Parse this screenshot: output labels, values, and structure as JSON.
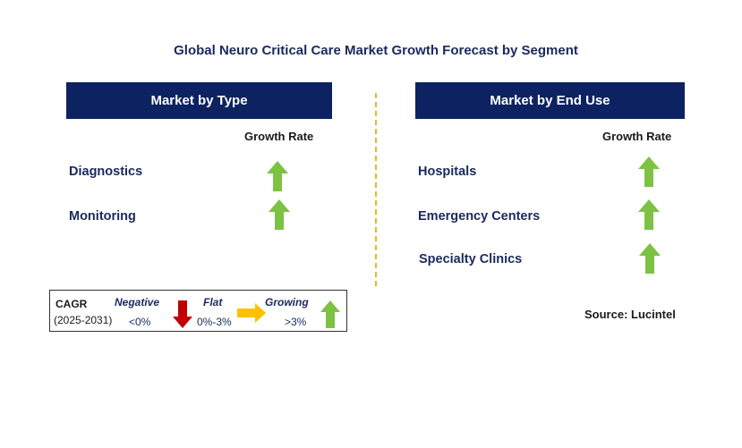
{
  "title": "Global Neuro Critical Care Market Growth Forecast by Segment",
  "left_panel": {
    "header": "Market by Type",
    "growth_label": "Growth Rate",
    "rows": [
      {
        "label": "Diagnostics",
        "trend": "growing"
      },
      {
        "label": "Monitoring",
        "trend": "growing"
      }
    ]
  },
  "right_panel": {
    "header": "Market by End Use",
    "growth_label": "Growth Rate",
    "rows": [
      {
        "label": "Hospitals",
        "trend": "growing"
      },
      {
        "label": "Emergency Centers",
        "trend": "growing"
      },
      {
        "label": "Specialty Clinics",
        "trend": "growing"
      }
    ]
  },
  "legend": {
    "cagr": "CAGR",
    "period": "(2025-2031)",
    "negative_label": "Negative",
    "negative_range": "<0%",
    "flat_label": "Flat",
    "flat_range": "0%-3%",
    "growing_label": "Growing",
    "growing_range": ">3%"
  },
  "source": "Source: Lucintel",
  "colors": {
    "header_bg": "#0d2260",
    "growing_arrow": "#7dc243",
    "negative_arrow": "#c00000",
    "flat_arrow": "#ffc000",
    "divider": "#f0b323"
  }
}
